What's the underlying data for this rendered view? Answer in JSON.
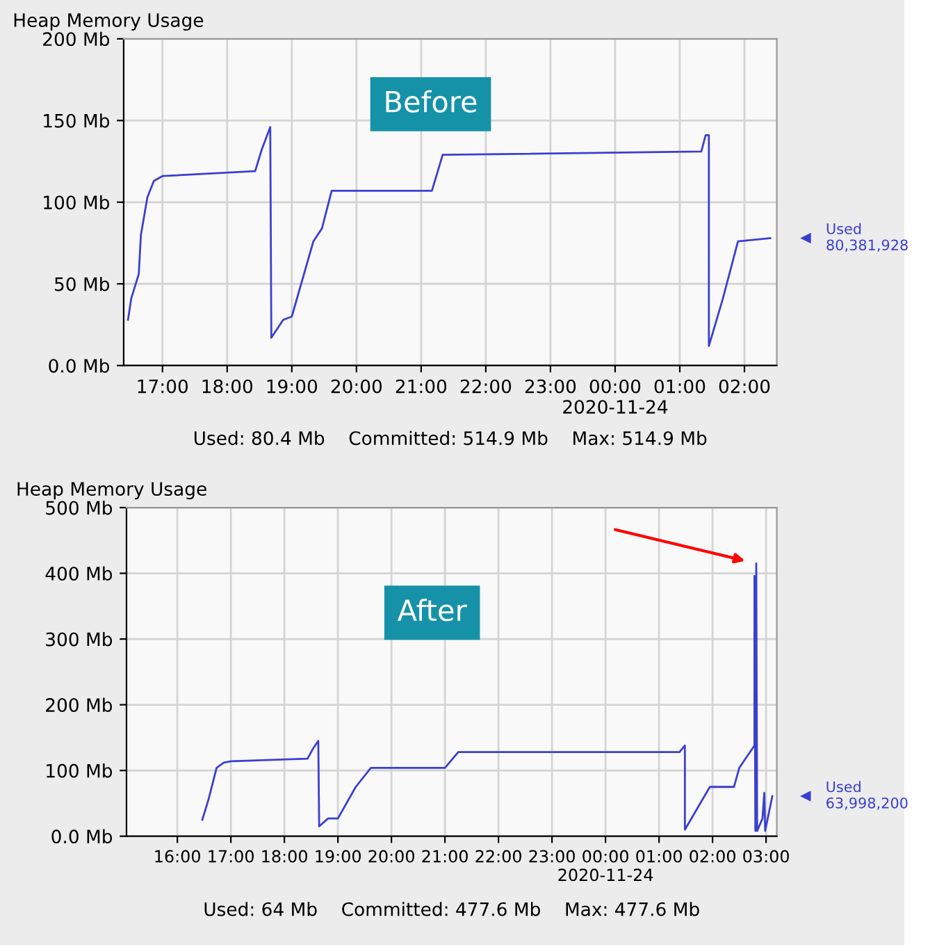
{
  "chart_data": [
    {
      "type": "line",
      "title": "Heap Memory Usage",
      "xlim": [
        "2020-11-23T16:24",
        "2020-11-24T02:30"
      ],
      "ylim": [
        0,
        200
      ],
      "xticks": [
        {
          "value": "2020-11-23T17:00",
          "label": "17:00"
        },
        {
          "value": "2020-11-23T18:00",
          "label": "18:00"
        },
        {
          "value": "2020-11-23T19:00",
          "label": "19:00"
        },
        {
          "value": "2020-11-23T20:00",
          "label": "20:00"
        },
        {
          "value": "2020-11-23T21:00",
          "label": "21:00"
        },
        {
          "value": "2020-11-23T22:00",
          "label": "22:00"
        },
        {
          "value": "2020-11-23T23:00",
          "label": "23:00"
        },
        {
          "value": "2020-11-24T00:00",
          "label": "00:00\n2020-11-24"
        },
        {
          "value": "2020-11-24T01:00",
          "label": "01:00"
        },
        {
          "value": "2020-11-24T02:00",
          "label": "02:00"
        }
      ],
      "yticks": [
        {
          "value": 0,
          "label": "0.0 Mb"
        },
        {
          "value": 50,
          "label": "50 Mb"
        },
        {
          "value": 100,
          "label": "100 Mb"
        },
        {
          "value": 150,
          "label": "150 Mb"
        },
        {
          "value": 200,
          "label": "200 Mb"
        }
      ],
      "grid": true,
      "marker": "none",
      "line_style": "solid",
      "series": [
        {
          "color": "#3b3fd0",
          "x": [
            "2020-11-23T16:28",
            "2020-11-23T16:31",
            "2020-11-23T16:38",
            "2020-11-23T16:40",
            "2020-11-23T16:46",
            "2020-11-23T16:52",
            "2020-11-23T17:00",
            "2020-11-23T18:26",
            "2020-11-23T18:32",
            "2020-11-23T18:40",
            "2020-11-23T18:41",
            "2020-11-23T18:52",
            "2020-11-23T19:00",
            "2020-11-23T19:20",
            "2020-11-23T19:28",
            "2020-11-23T19:37",
            "2020-11-23T21:10",
            "2020-11-23T21:20",
            "2020-11-24T01:20",
            "2020-11-24T01:24",
            "2020-11-24T01:27",
            "2020-11-24T01:27",
            "2020-11-24T01:40",
            "2020-11-24T01:54",
            "2020-11-24T02:24"
          ],
          "values": [
            28,
            41,
            56,
            80,
            103,
            113,
            116,
            119,
            132,
            146,
            17,
            28,
            30,
            76,
            84,
            107,
            107,
            129,
            131,
            141,
            141,
            12,
            41,
            76,
            78
          ]
        }
      ],
      "annotations": [
        "Before",
        "Used: 80.4 Mb    Committed: 514.9 Mb    Max: 514.9 Mb",
        "Used\n80,381,928"
      ]
    },
    {
      "type": "line",
      "title": "Heap Memory Usage",
      "xlim": [
        "2020-11-23T15:03",
        "2020-11-24T03:12"
      ],
      "ylim": [
        0,
        500
      ],
      "xticks": [
        {
          "value": "2020-11-23T16:00",
          "label": "16:00"
        },
        {
          "value": "2020-11-23T17:00",
          "label": "17:00"
        },
        {
          "value": "2020-11-23T18:00",
          "label": "18:00"
        },
        {
          "value": "2020-11-23T19:00",
          "label": "19:00"
        },
        {
          "value": "2020-11-23T20:00",
          "label": "20:00"
        },
        {
          "value": "2020-11-23T21:00",
          "label": "21:00"
        },
        {
          "value": "2020-11-23T22:00",
          "label": "22:00"
        },
        {
          "value": "2020-11-23T23:00",
          "label": "23:00"
        },
        {
          "value": "2020-11-24T00:00",
          "label": "00:00\n2020-11-24"
        },
        {
          "value": "2020-11-24T01:00",
          "label": "01:00"
        },
        {
          "value": "2020-11-24T02:00",
          "label": "02:00"
        },
        {
          "value": "2020-11-24T03:00",
          "label": "03:00"
        }
      ],
      "yticks": [
        {
          "value": 0,
          "label": "0.0 Mb"
        },
        {
          "value": 100,
          "label": "100 Mb"
        },
        {
          "value": 200,
          "label": "200 Mb"
        },
        {
          "value": 300,
          "label": "300 Mb"
        },
        {
          "value": 400,
          "label": "400 Mb"
        },
        {
          "value": 500,
          "label": "500 Mb"
        }
      ],
      "grid": true,
      "marker": "none",
      "line_style": "solid",
      "series": [
        {
          "color": "#3b3fd0",
          "x": [
            "2020-11-23T16:28",
            "2020-11-23T16:35",
            "2020-11-23T16:44",
            "2020-11-23T16:52",
            "2020-11-23T17:00",
            "2020-11-23T18:26",
            "2020-11-23T18:32",
            "2020-11-23T18:38",
            "2020-11-23T18:39",
            "2020-11-23T18:49",
            "2020-11-23T19:00",
            "2020-11-23T19:20",
            "2020-11-23T19:37",
            "2020-11-23T21:00",
            "2020-11-23T21:15",
            "2020-11-24T01:23",
            "2020-11-24T01:29",
            "2020-11-24T01:29",
            "2020-11-24T01:57",
            "2020-11-24T02:24",
            "2020-11-24T02:30",
            "2020-11-24T02:47",
            "2020-11-24T02:47",
            "2020-11-24T02:48",
            "2020-11-24T02:49",
            "2020-11-24T02:50",
            "2020-11-24T02:56",
            "2020-11-24T02:58",
            "2020-11-24T02:59",
            "2020-11-24T03:07"
          ],
          "values": [
            25,
            56,
            104,
            112,
            114,
            118,
            133,
            145,
            15,
            27,
            27,
            75,
            104,
            104,
            128,
            128,
            138,
            10,
            75,
            75,
            104,
            138,
            396,
            8,
            415,
            8,
            27,
            66,
            8,
            61
          ]
        }
      ],
      "annotations": [
        "After",
        "Used: 64 Mb    Committed: 477.6 Mb    Max: 477.6 Mb",
        "Used\n63,998,200"
      ]
    }
  ]
}
